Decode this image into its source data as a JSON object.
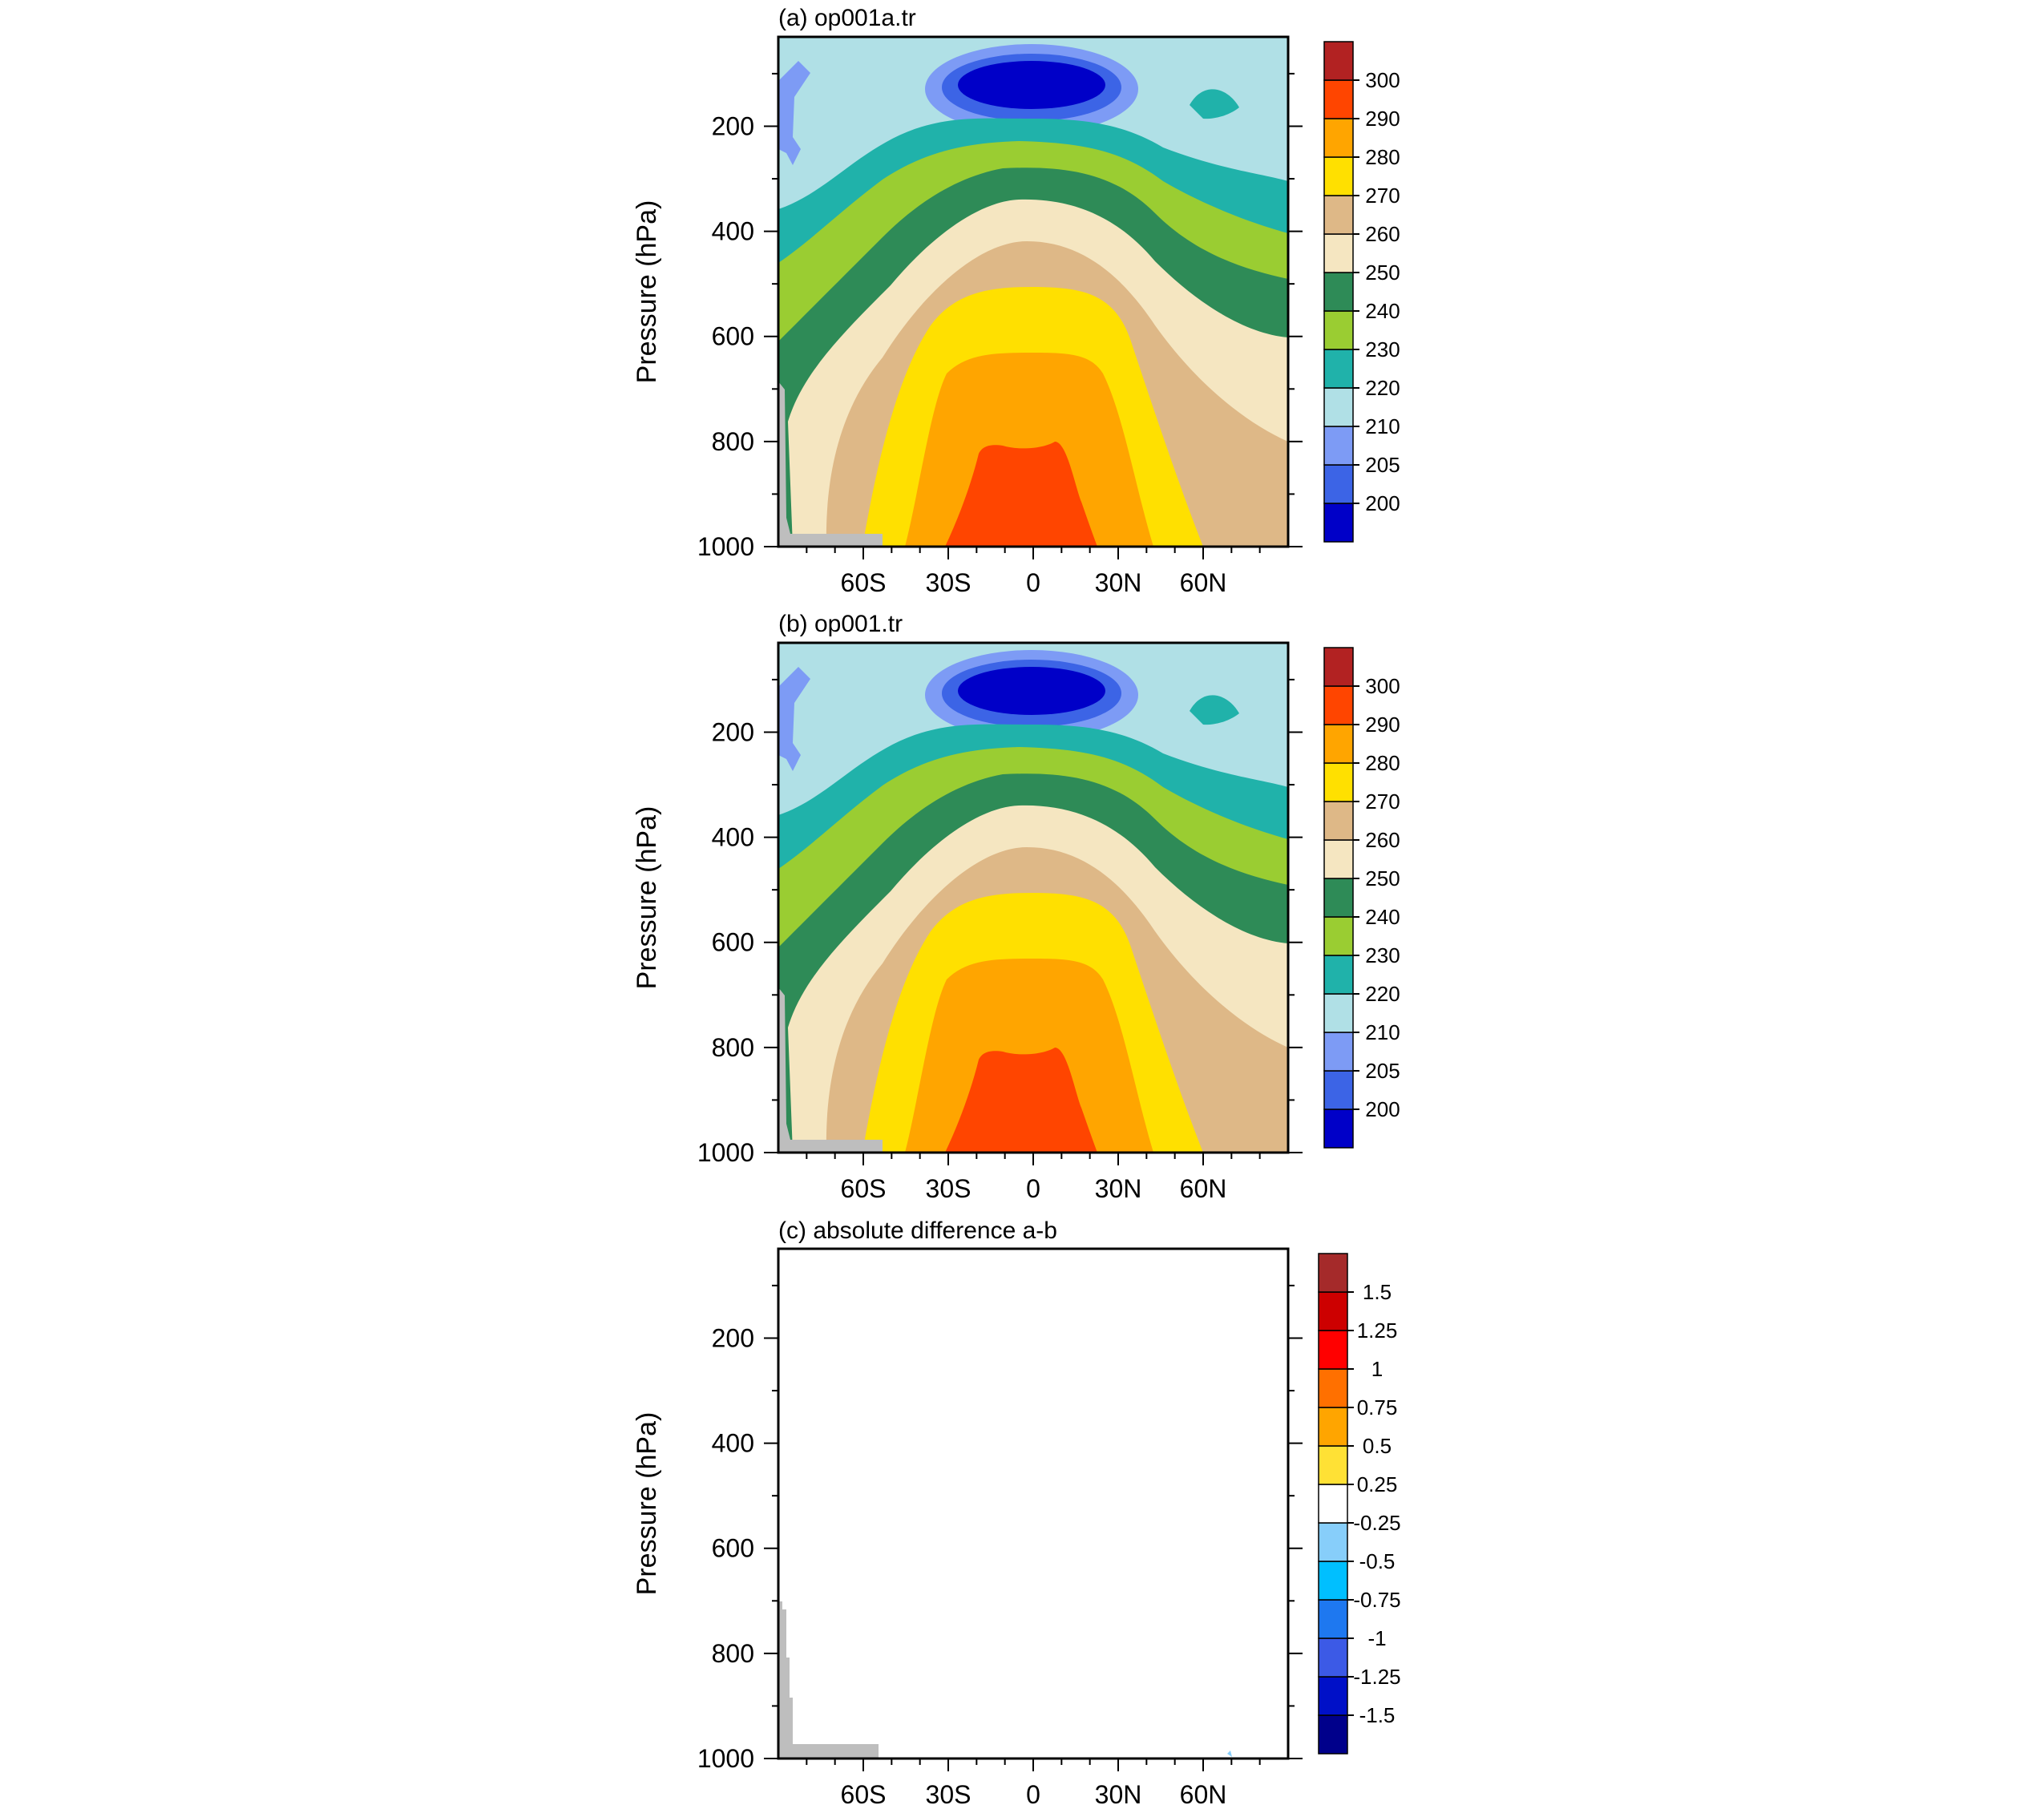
{
  "chart_data": [
    {
      "type": "filled-contour",
      "title": "(a) op001a.tr",
      "ylabel": "Pressure (hPa)",
      "xlabel": "",
      "xlim": [
        -90,
        90
      ],
      "ylim": [
        1000,
        30
      ],
      "yaxis_reversed": true,
      "xticks": [
        {
          "value": -60,
          "label": "60S"
        },
        {
          "value": -30,
          "label": "30S"
        },
        {
          "value": 0,
          "label": "0"
        },
        {
          "value": 30,
          "label": "30N"
        },
        {
          "value": 60,
          "label": "60N"
        }
      ],
      "yticks": [
        {
          "value": 200,
          "label": "200"
        },
        {
          "value": 400,
          "label": "400"
        },
        {
          "value": 600,
          "label": "600"
        },
        {
          "value": 800,
          "label": "800"
        },
        {
          "value": 1000,
          "label": "1000"
        }
      ],
      "colorbar": {
        "labels": [
          "200",
          "205",
          "210",
          "220",
          "230",
          "240",
          "250",
          "260",
          "270",
          "280",
          "290",
          "300"
        ],
        "colors": [
          "#0000C8",
          "#3C64E6",
          "#7D9BF5",
          "#B0E0E6",
          "#20B2AA",
          "#9ACD32",
          "#2E8B57",
          "#F5E6C1",
          "#DEB887",
          "#FFE000",
          "#FFA500",
          "#FF4500",
          "#B22222"
        ]
      },
      "missing_color": "#BEBEBE"
    },
    {
      "type": "filled-contour",
      "title": "(b) op001.tr",
      "ylabel": "Pressure (hPa)",
      "xlabel": "",
      "xlim": [
        -90,
        90
      ],
      "ylim": [
        1000,
        30
      ],
      "yaxis_reversed": true,
      "xticks": [
        {
          "value": -60,
          "label": "60S"
        },
        {
          "value": -30,
          "label": "30S"
        },
        {
          "value": 0,
          "label": "0"
        },
        {
          "value": 30,
          "label": "30N"
        },
        {
          "value": 60,
          "label": "60N"
        }
      ],
      "yticks": [
        {
          "value": 200,
          "label": "200"
        },
        {
          "value": 400,
          "label": "400"
        },
        {
          "value": 600,
          "label": "600"
        },
        {
          "value": 800,
          "label": "800"
        },
        {
          "value": 1000,
          "label": "1000"
        }
      ],
      "colorbar": {
        "labels": [
          "200",
          "205",
          "210",
          "220",
          "230",
          "240",
          "250",
          "260",
          "270",
          "280",
          "290",
          "300"
        ],
        "colors": [
          "#0000C8",
          "#3C64E6",
          "#7D9BF5",
          "#B0E0E6",
          "#20B2AA",
          "#9ACD32",
          "#2E8B57",
          "#F5E6C1",
          "#DEB887",
          "#FFE000",
          "#FFA500",
          "#FF4500",
          "#B22222"
        ]
      },
      "missing_color": "#BEBEBE"
    },
    {
      "type": "filled-contour",
      "title": "(c) absolute difference a-b",
      "ylabel": "Pressure (hPa)",
      "xlabel": "",
      "xlim": [
        -90,
        90
      ],
      "ylim": [
        1000,
        30
      ],
      "yaxis_reversed": true,
      "xticks": [
        {
          "value": -60,
          "label": "60S"
        },
        {
          "value": -30,
          "label": "30S"
        },
        {
          "value": 0,
          "label": "0"
        },
        {
          "value": 30,
          "label": "30N"
        },
        {
          "value": 60,
          "label": "60N"
        }
      ],
      "yticks": [
        {
          "value": 200,
          "label": "200"
        },
        {
          "value": 400,
          "label": "400"
        },
        {
          "value": 600,
          "label": "600"
        },
        {
          "value": 800,
          "label": "800"
        },
        {
          "value": 1000,
          "label": "1000"
        }
      ],
      "colorbar": {
        "labels": [
          "-1.5",
          "-1.25",
          "-1",
          "-0.75",
          "-0.5",
          "-0.25",
          "0.25",
          "0.5",
          "0.75",
          "1",
          "1.25",
          "1.5"
        ],
        "colors": [
          "#00008B",
          "#0010C8",
          "#3C5AE6",
          "#1E78F0",
          "#00BFFF",
          "#87CEFA",
          "#FFFFFF",
          "#FFE135",
          "#FFA500",
          "#FF7000",
          "#FF0000",
          "#CD0000",
          "#A52A2A"
        ]
      },
      "missing_color": "#BEBEBE"
    }
  ]
}
